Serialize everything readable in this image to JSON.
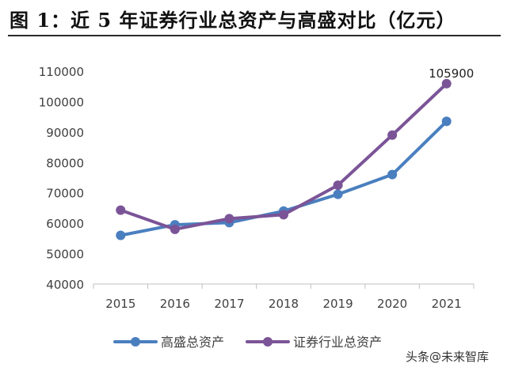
{
  "title": "图 1：近 5 年证券行业总资产与高盛对比（亿元）",
  "watermark": "头条@未来智库",
  "colors": {
    "goldman": "#4a7fbf",
    "industry": "#7b5497",
    "axis": "#bfbfbf",
    "text": "#404040"
  },
  "chart_data": {
    "type": "line",
    "categories": [
      "2015",
      "2016",
      "2017",
      "2018",
      "2019",
      "2020",
      "2021"
    ],
    "series": [
      {
        "name": "高盛总资产",
        "values": [
          56000,
          59500,
          60200,
          64000,
          69500,
          76000,
          93500
        ]
      },
      {
        "name": "证券行业总资产",
        "values": [
          64300,
          58000,
          61500,
          62800,
          72500,
          89000,
          105900
        ]
      }
    ],
    "ylim": [
      40000,
      110000
    ],
    "yticks": [
      40000,
      50000,
      60000,
      70000,
      80000,
      90000,
      100000,
      110000
    ],
    "data_labels": [
      {
        "series": 1,
        "index": 6,
        "text": "105900"
      }
    ],
    "legend": "bottom",
    "grid": false
  }
}
